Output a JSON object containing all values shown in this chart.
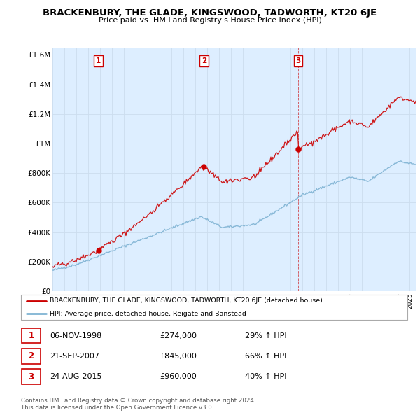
{
  "title": "BRACKENBURY, THE GLADE, KINGSWOOD, TADWORTH, KT20 6JE",
  "subtitle": "Price paid vs. HM Land Registry's House Price Index (HPI)",
  "ylabel_ticks": [
    "£0",
    "£200K",
    "£400K",
    "£600K",
    "£800K",
    "£1M",
    "£1.2M",
    "£1.4M",
    "£1.6M"
  ],
  "ytick_values": [
    0,
    200000,
    400000,
    600000,
    800000,
    1000000,
    1200000,
    1400000,
    1600000
  ],
  "ylim": [
    0,
    1650000
  ],
  "xlim_start": 1995.0,
  "xlim_end": 2025.5,
  "legend_line1": "BRACKENBURY, THE GLADE, KINGSWOOD, TADWORTH, KT20 6JE (detached house)",
  "legend_line2": "HPI: Average price, detached house, Reigate and Banstead",
  "transactions": [
    {
      "num": 1,
      "date": "06-NOV-1998",
      "price": 274000,
      "pct": "29%",
      "dir": "↑",
      "year_x": 1998.85
    },
    {
      "num": 2,
      "date": "21-SEP-2007",
      "price": 845000,
      "pct": "66%",
      "dir": "↑",
      "year_x": 2007.72
    },
    {
      "num": 3,
      "date": "24-AUG-2015",
      "price": 960000,
      "pct": "40%",
      "dir": "↑",
      "year_x": 2015.64
    }
  ],
  "red_color": "#cc0000",
  "blue_color": "#7fb3d3",
  "bg_color": "#ddeeff",
  "grid_color": "#ccddee",
  "footnote1": "Contains HM Land Registry data © Crown copyright and database right 2024.",
  "footnote2": "This data is licensed under the Open Government Licence v3.0."
}
